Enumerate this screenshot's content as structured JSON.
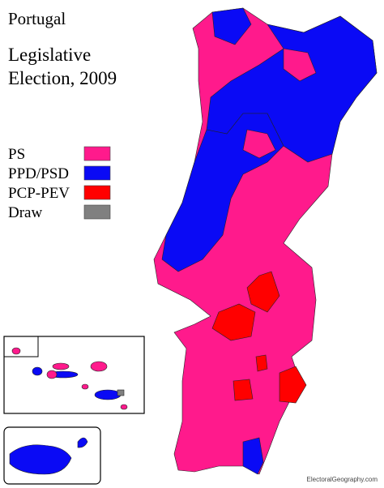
{
  "title": "Portugal",
  "subtitle_lines": [
    "Legislative",
    "Election, 2009"
  ],
  "legend": [
    {
      "name": "PS",
      "color": "#ff1a8c"
    },
    {
      "name": "PPD/PSD",
      "color": "#0a0af5"
    },
    {
      "name": "PCP-PEV",
      "color": "#ff0000"
    },
    {
      "name": "Draw",
      "color": "#808080"
    }
  ],
  "watermark": "ElectoralGeography.com"
}
